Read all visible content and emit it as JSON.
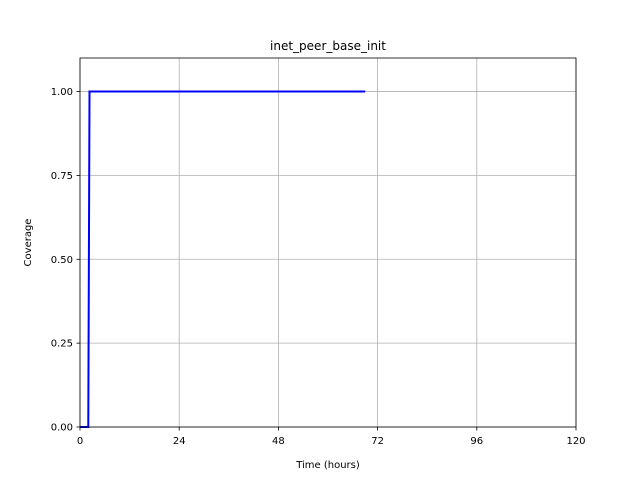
{
  "chart_data": {
    "type": "line",
    "title": "inet_peer_base_init",
    "xlabel": "Time (hours)",
    "ylabel": "Coverage",
    "xlim": [
      0,
      120
    ],
    "ylim": [
      0,
      1.1
    ],
    "x_ticks": [
      0,
      24,
      48,
      72,
      96,
      120
    ],
    "x_tick_labels": [
      "0",
      "24",
      "48",
      "72",
      "96",
      "120"
    ],
    "y_ticks": [
      0,
      0.25,
      0.5,
      0.75,
      1.0
    ],
    "y_tick_labels": [
      "0.00",
      "0.25",
      "0.50",
      "0.75",
      "1.00"
    ],
    "grid": true,
    "series": [
      {
        "color": "#0000ff",
        "x": [
          0,
          2,
          2.3,
          69
        ],
        "y": [
          0,
          0,
          1,
          1
        ]
      }
    ]
  }
}
